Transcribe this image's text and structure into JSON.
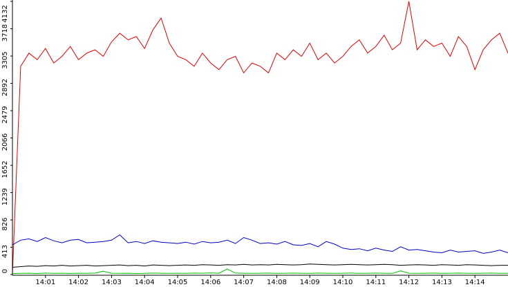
{
  "chart_data": {
    "type": "line",
    "x": [
      0,
      0.25,
      0.5,
      0.75,
      1,
      1.25,
      1.5,
      1.75,
      2,
      2.25,
      2.5,
      2.75,
      3,
      3.25,
      3.5,
      3.75,
      4,
      4.25,
      4.5,
      4.75,
      5,
      5.25,
      5.5,
      5.75,
      6,
      6.25,
      6.5,
      6.75,
      7,
      7.25,
      7.5,
      7.75,
      8,
      8.25,
      8.5,
      8.75,
      9,
      9.25,
      9.5,
      9.75,
      10,
      10.25,
      10.5,
      10.75,
      11,
      11.25,
      11.5,
      11.75,
      12,
      12.25,
      12.5,
      12.75,
      13,
      13.25,
      13.5,
      13.75,
      14,
      14.25,
      14.5,
      14.75,
      15
    ],
    "xlim": [
      0,
      15
    ],
    "xticks": [
      {
        "value": 1,
        "label": "14:01"
      },
      {
        "value": 2,
        "label": "14:02"
      },
      {
        "value": 3,
        "label": "14:03"
      },
      {
        "value": 4,
        "label": "14:04"
      },
      {
        "value": 5,
        "label": "14:05"
      },
      {
        "value": 6,
        "label": "14:06"
      },
      {
        "value": 7,
        "label": "14:07"
      },
      {
        "value": 8,
        "label": "14:08"
      },
      {
        "value": 9,
        "label": "14:09"
      },
      {
        "value": 10,
        "label": "14:10"
      },
      {
        "value": 11,
        "label": "14:11"
      },
      {
        "value": 12,
        "label": "14:12"
      },
      {
        "value": 13,
        "label": "14:13"
      },
      {
        "value": 14,
        "label": "14:14"
      }
    ],
    "ylim": [
      0,
      4132
    ],
    "yticks": [
      0,
      413,
      826,
      1239,
      1652,
      2066,
      2479,
      2892,
      3305,
      3718,
      4132
    ],
    "series": [
      {
        "color": "#e00000",
        "values": [
          0,
          3150,
          3350,
          3250,
          3420,
          3200,
          3300,
          3450,
          3250,
          3350,
          3400,
          3300,
          3520,
          3650,
          3550,
          3600,
          3420,
          3700,
          3880,
          3500,
          3300,
          3250,
          3150,
          3350,
          3200,
          3100,
          3250,
          3300,
          3050,
          3200,
          3150,
          3050,
          3350,
          3250,
          3400,
          3300,
          3500,
          3250,
          3350,
          3200,
          3300,
          3450,
          3550,
          3350,
          3450,
          3620,
          3400,
          3500,
          4132,
          3400,
          3550,
          3450,
          3500,
          3300,
          3600,
          3450,
          3100,
          3400,
          3550,
          3650,
          3350
        ]
      },
      {
        "color": "#0000c0",
        "values": [
          450,
          520,
          540,
          500,
          560,
          510,
          480,
          520,
          530,
          480,
          490,
          500,
          520,
          600,
          480,
          500,
          470,
          510,
          490,
          480,
          470,
          490,
          460,
          500,
          480,
          490,
          520,
          470,
          560,
          520,
          470,
          480,
          460,
          500,
          450,
          440,
          470,
          420,
          500,
          460,
          400,
          380,
          390,
          360,
          400,
          370,
          350,
          420,
          370,
          380,
          360,
          340,
          330,
          370,
          340,
          350,
          360,
          320,
          340,
          370,
          330
        ]
      },
      {
        "color": "#000000",
        "values": [
          110,
          120,
          130,
          125,
          135,
          130,
          140,
          130,
          135,
          140,
          130,
          135,
          140,
          145,
          135,
          140,
          130,
          145,
          140,
          135,
          140,
          145,
          140,
          150,
          145,
          140,
          150,
          145,
          155,
          145,
          150,
          145,
          155,
          150,
          145,
          150,
          160,
          155,
          150,
          145,
          150,
          155,
          150,
          145,
          150,
          155,
          150,
          140,
          145,
          150,
          145,
          140,
          150,
          145,
          140,
          150,
          145,
          140,
          135,
          140,
          140
        ]
      },
      {
        "color": "#00c000",
        "values": [
          15,
          18,
          20,
          16,
          22,
          18,
          20,
          17,
          20,
          18,
          22,
          50,
          20,
          18,
          20,
          16,
          18,
          22,
          20,
          18,
          20,
          18,
          22,
          20,
          25,
          20,
          85,
          22,
          20,
          18,
          20,
          22,
          18,
          20,
          22,
          20,
          18,
          22,
          20,
          18,
          20,
          22,
          18,
          20,
          22,
          20,
          18,
          55,
          20,
          18,
          20,
          22,
          18,
          20,
          22,
          20,
          18,
          20,
          22,
          18,
          20
        ]
      }
    ]
  }
}
